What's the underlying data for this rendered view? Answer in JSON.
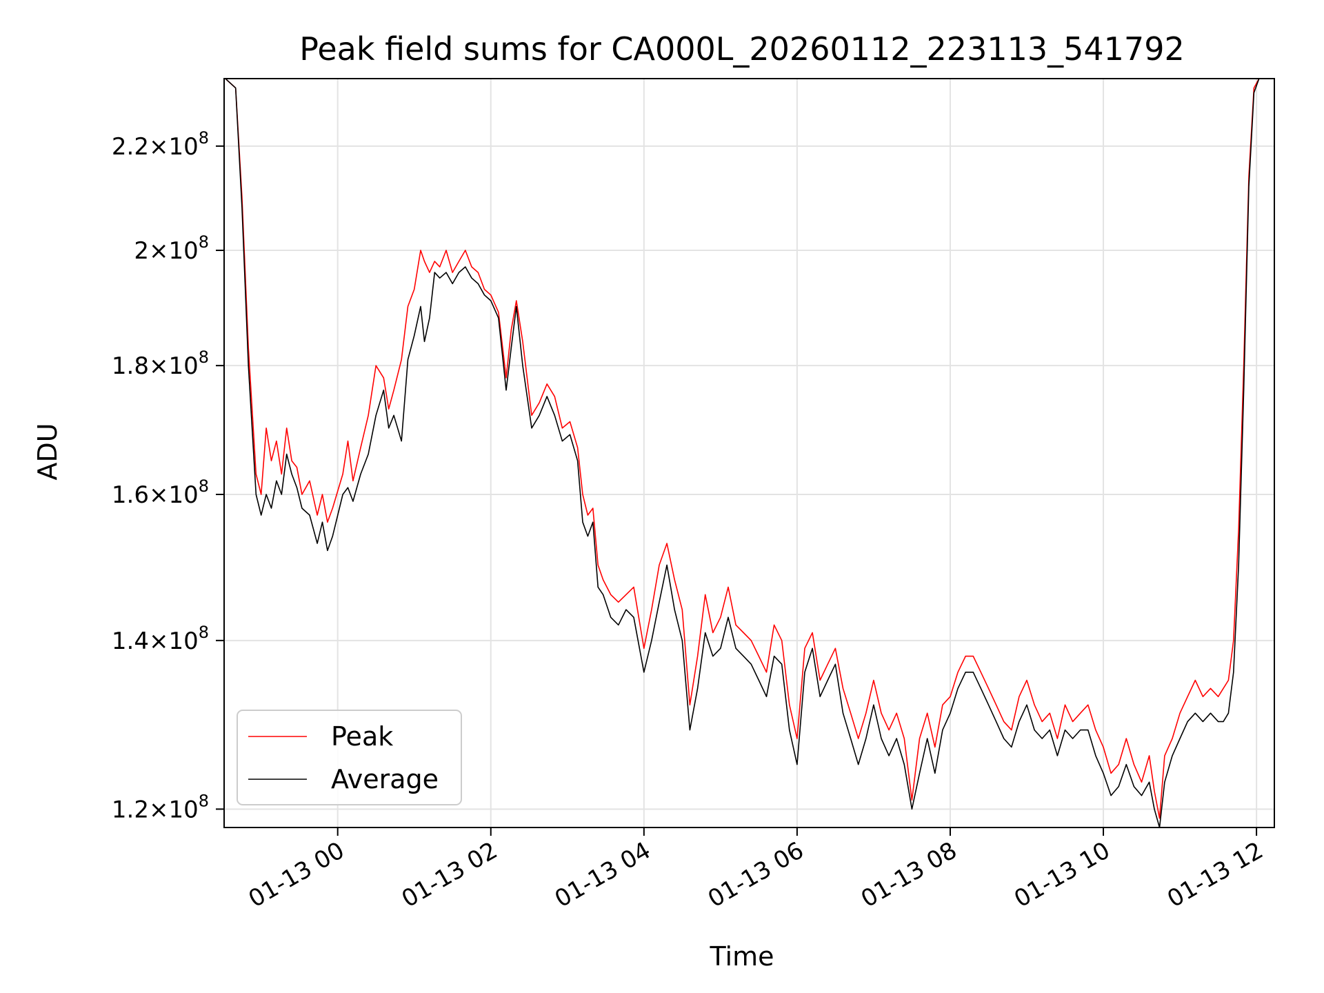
{
  "chart_data": {
    "type": "line",
    "title": "Peak field sums for CA000L_20260112_223113_541792",
    "xlabel": "Time",
    "ylabel": "ADU",
    "yscale": "log",
    "grid": true,
    "legend_position": "lower-left",
    "xlim": [
      "2026-01-12T22:31",
      "2026-01-13T12:14"
    ],
    "ylim": [
      118000000,
      234000000
    ],
    "x_ticks": [
      {
        "value": "2026-01-13T00:00",
        "label": "01-13 00"
      },
      {
        "value": "2026-01-13T02:00",
        "label": "01-13 02"
      },
      {
        "value": "2026-01-13T04:00",
        "label": "01-13 04"
      },
      {
        "value": "2026-01-13T06:00",
        "label": "01-13 06"
      },
      {
        "value": "2026-01-13T08:00",
        "label": "01-13 08"
      },
      {
        "value": "2026-01-13T10:00",
        "label": "01-13 10"
      },
      {
        "value": "2026-01-13T12:00",
        "label": "01-13 12"
      }
    ],
    "y_ticks": [
      {
        "value": 120000000,
        "mantissa": "1.2",
        "exponent": "8"
      },
      {
        "value": 140000000,
        "mantissa": "1.4",
        "exponent": "8"
      },
      {
        "value": 160000000,
        "mantissa": "1.6",
        "exponent": "8"
      },
      {
        "value": 180000000,
        "mantissa": "1.8",
        "exponent": "8"
      },
      {
        "value": 200000000,
        "mantissa": "2",
        "exponent": "8"
      },
      {
        "value": 220000000,
        "mantissa": "2.2",
        "exponent": "8"
      }
    ],
    "series": [
      {
        "name": "Peak",
        "color": "#ff0000",
        "x": [
          "2026-01-12T22:32",
          "2026-01-12T22:40",
          "2026-01-12T22:45",
          "2026-01-12T22:50",
          "2026-01-12T22:56",
          "2026-01-12T23:00",
          "2026-01-12T23:04",
          "2026-01-12T23:08",
          "2026-01-12T23:12",
          "2026-01-12T23:16",
          "2026-01-12T23:20",
          "2026-01-12T23:24",
          "2026-01-12T23:28",
          "2026-01-12T23:32",
          "2026-01-12T23:38",
          "2026-01-12T23:44",
          "2026-01-12T23:48",
          "2026-01-12T23:52",
          "2026-01-12T23:56",
          "2026-01-13T00:04",
          "2026-01-13T00:08",
          "2026-01-13T00:12",
          "2026-01-13T00:18",
          "2026-01-13T00:24",
          "2026-01-13T00:30",
          "2026-01-13T00:36",
          "2026-01-13T00:40",
          "2026-01-13T00:44",
          "2026-01-13T00:50",
          "2026-01-13T00:55",
          "2026-01-13T01:00",
          "2026-01-13T01:05",
          "2026-01-13T01:08",
          "2026-01-13T01:12",
          "2026-01-13T01:16",
          "2026-01-13T01:20",
          "2026-01-13T01:25",
          "2026-01-13T01:30",
          "2026-01-13T01:35",
          "2026-01-13T01:40",
          "2026-01-13T01:45",
          "2026-01-13T01:50",
          "2026-01-13T01:55",
          "2026-01-13T02:00",
          "2026-01-13T02:06",
          "2026-01-13T02:12",
          "2026-01-13T02:16",
          "2026-01-13T02:20",
          "2026-01-13T02:25",
          "2026-01-13T02:32",
          "2026-01-13T02:38",
          "2026-01-13T02:44",
          "2026-01-13T02:50",
          "2026-01-13T02:56",
          "2026-01-13T03:02",
          "2026-01-13T03:08",
          "2026-01-13T03:12",
          "2026-01-13T03:16",
          "2026-01-13T03:20",
          "2026-01-13T03:24",
          "2026-01-13T03:28",
          "2026-01-13T03:34",
          "2026-01-13T03:40",
          "2026-01-13T03:46",
          "2026-01-13T03:52",
          "2026-01-13T04:00",
          "2026-01-13T04:06",
          "2026-01-13T04:12",
          "2026-01-13T04:18",
          "2026-01-13T04:24",
          "2026-01-13T04:30",
          "2026-01-13T04:36",
          "2026-01-13T04:42",
          "2026-01-13T04:48",
          "2026-01-13T04:54",
          "2026-01-13T05:00",
          "2026-01-13T05:06",
          "2026-01-13T05:12",
          "2026-01-13T05:18",
          "2026-01-13T05:24",
          "2026-01-13T05:30",
          "2026-01-13T05:36",
          "2026-01-13T05:42",
          "2026-01-13T05:48",
          "2026-01-13T05:54",
          "2026-01-13T06:00",
          "2026-01-13T06:06",
          "2026-01-13T06:12",
          "2026-01-13T06:18",
          "2026-01-13T06:24",
          "2026-01-13T06:30",
          "2026-01-13T06:36",
          "2026-01-13T06:42",
          "2026-01-13T06:48",
          "2026-01-13T06:54",
          "2026-01-13T07:00",
          "2026-01-13T07:06",
          "2026-01-13T07:12",
          "2026-01-13T07:18",
          "2026-01-13T07:24",
          "2026-01-13T07:30",
          "2026-01-13T07:36",
          "2026-01-13T07:42",
          "2026-01-13T07:48",
          "2026-01-13T07:54",
          "2026-01-13T08:00",
          "2026-01-13T08:06",
          "2026-01-13T08:12",
          "2026-01-13T08:18",
          "2026-01-13T08:24",
          "2026-01-13T08:30",
          "2026-01-13T08:36",
          "2026-01-13T08:42",
          "2026-01-13T08:48",
          "2026-01-13T08:54",
          "2026-01-13T09:00",
          "2026-01-13T09:06",
          "2026-01-13T09:12",
          "2026-01-13T09:18",
          "2026-01-13T09:24",
          "2026-01-13T09:30",
          "2026-01-13T09:36",
          "2026-01-13T09:42",
          "2026-01-13T09:48",
          "2026-01-13T09:54",
          "2026-01-13T10:00",
          "2026-01-13T10:06",
          "2026-01-13T10:12",
          "2026-01-13T10:18",
          "2026-01-13T10:24",
          "2026-01-13T10:30",
          "2026-01-13T10:36",
          "2026-01-13T10:40",
          "2026-01-13T10:44",
          "2026-01-13T10:48",
          "2026-01-13T10:54",
          "2026-01-13T11:00",
          "2026-01-13T11:06",
          "2026-01-13T11:12",
          "2026-01-13T11:18",
          "2026-01-13T11:24",
          "2026-01-13T11:30",
          "2026-01-13T11:34",
          "2026-01-13T11:38",
          "2026-01-13T11:42",
          "2026-01-13T11:46",
          "2026-01-13T11:50",
          "2026-01-13T11:54",
          "2026-01-13T11:58",
          "2026-01-13T12:02"
        ],
        "values": [
          234000000,
          232000000,
          210000000,
          183000000,
          163000000,
          160000000,
          170000000,
          165000000,
          168000000,
          163000000,
          170000000,
          165000000,
          164000000,
          160000000,
          162000000,
          157000000,
          160000000,
          156000000,
          158000000,
          163000000,
          168000000,
          162000000,
          167000000,
          172000000,
          180000000,
          178000000,
          173000000,
          176000000,
          181000000,
          190000000,
          193000000,
          200000000,
          198000000,
          196000000,
          198000000,
          197000000,
          200000000,
          196000000,
          198000000,
          200000000,
          197000000,
          196000000,
          193000000,
          192000000,
          189000000,
          178000000,
          186000000,
          191000000,
          184000000,
          172000000,
          174000000,
          177000000,
          175000000,
          170000000,
          171000000,
          167000000,
          160000000,
          157000000,
          158000000,
          150000000,
          148000000,
          146000000,
          145000000,
          146000000,
          147000000,
          139000000,
          144000000,
          150000000,
          153000000,
          148000000,
          144000000,
          132000000,
          138000000,
          146000000,
          141000000,
          143000000,
          147000000,
          142000000,
          141000000,
          140000000,
          138000000,
          136000000,
          142000000,
          140000000,
          132000000,
          128000000,
          139000000,
          141000000,
          135000000,
          137000000,
          139000000,
          134000000,
          131000000,
          128000000,
          131000000,
          135000000,
          131000000,
          129000000,
          131000000,
          128000000,
          121000000,
          128000000,
          131000000,
          127000000,
          132000000,
          133000000,
          136000000,
          138000000,
          138000000,
          136000000,
          134000000,
          132000000,
          130000000,
          129000000,
          133000000,
          135000000,
          132000000,
          130000000,
          131000000,
          128000000,
          132000000,
          130000000,
          131000000,
          132000000,
          129000000,
          127000000,
          124000000,
          125000000,
          128000000,
          125000000,
          123000000,
          126000000,
          122000000,
          119000000,
          126000000,
          128000000,
          131000000,
          133000000,
          135000000,
          133000000,
          134000000,
          133000000,
          134000000,
          135000000,
          140000000,
          155000000,
          180000000,
          214000000,
          232000000,
          234000000
        ]
      },
      {
        "name": "Average",
        "color": "#000000",
        "x": [
          "2026-01-12T22:32",
          "2026-01-12T22:40",
          "2026-01-12T22:45",
          "2026-01-12T22:50",
          "2026-01-12T22:56",
          "2026-01-12T23:00",
          "2026-01-12T23:04",
          "2026-01-12T23:08",
          "2026-01-12T23:12",
          "2026-01-12T23:16",
          "2026-01-12T23:20",
          "2026-01-12T23:24",
          "2026-01-12T23:28",
          "2026-01-12T23:32",
          "2026-01-12T23:38",
          "2026-01-12T23:44",
          "2026-01-12T23:48",
          "2026-01-12T23:52",
          "2026-01-12T23:56",
          "2026-01-13T00:04",
          "2026-01-13T00:08",
          "2026-01-13T00:12",
          "2026-01-13T00:18",
          "2026-01-13T00:24",
          "2026-01-13T00:30",
          "2026-01-13T00:36",
          "2026-01-13T00:40",
          "2026-01-13T00:44",
          "2026-01-13T00:50",
          "2026-01-13T00:55",
          "2026-01-13T01:00",
          "2026-01-13T01:05",
          "2026-01-13T01:08",
          "2026-01-13T01:12",
          "2026-01-13T01:16",
          "2026-01-13T01:20",
          "2026-01-13T01:25",
          "2026-01-13T01:30",
          "2026-01-13T01:35",
          "2026-01-13T01:40",
          "2026-01-13T01:45",
          "2026-01-13T01:50",
          "2026-01-13T01:55",
          "2026-01-13T02:00",
          "2026-01-13T02:06",
          "2026-01-13T02:12",
          "2026-01-13T02:16",
          "2026-01-13T02:20",
          "2026-01-13T02:25",
          "2026-01-13T02:32",
          "2026-01-13T02:38",
          "2026-01-13T02:44",
          "2026-01-13T02:50",
          "2026-01-13T02:56",
          "2026-01-13T03:02",
          "2026-01-13T03:08",
          "2026-01-13T03:12",
          "2026-01-13T03:16",
          "2026-01-13T03:20",
          "2026-01-13T03:24",
          "2026-01-13T03:28",
          "2026-01-13T03:34",
          "2026-01-13T03:40",
          "2026-01-13T03:46",
          "2026-01-13T03:52",
          "2026-01-13T04:00",
          "2026-01-13T04:06",
          "2026-01-13T04:12",
          "2026-01-13T04:18",
          "2026-01-13T04:24",
          "2026-01-13T04:30",
          "2026-01-13T04:36",
          "2026-01-13T04:42",
          "2026-01-13T04:48",
          "2026-01-13T04:54",
          "2026-01-13T05:00",
          "2026-01-13T05:06",
          "2026-01-13T05:12",
          "2026-01-13T05:18",
          "2026-01-13T05:24",
          "2026-01-13T05:30",
          "2026-01-13T05:36",
          "2026-01-13T05:42",
          "2026-01-13T05:48",
          "2026-01-13T05:54",
          "2026-01-13T06:00",
          "2026-01-13T06:06",
          "2026-01-13T06:12",
          "2026-01-13T06:18",
          "2026-01-13T06:24",
          "2026-01-13T06:30",
          "2026-01-13T06:36",
          "2026-01-13T06:42",
          "2026-01-13T06:48",
          "2026-01-13T06:54",
          "2026-01-13T07:00",
          "2026-01-13T07:06",
          "2026-01-13T07:12",
          "2026-01-13T07:18",
          "2026-01-13T07:24",
          "2026-01-13T07:30",
          "2026-01-13T07:36",
          "2026-01-13T07:42",
          "2026-01-13T07:48",
          "2026-01-13T07:54",
          "2026-01-13T08:00",
          "2026-01-13T08:06",
          "2026-01-13T08:12",
          "2026-01-13T08:18",
          "2026-01-13T08:24",
          "2026-01-13T08:30",
          "2026-01-13T08:36",
          "2026-01-13T08:42",
          "2026-01-13T08:48",
          "2026-01-13T08:54",
          "2026-01-13T09:00",
          "2026-01-13T09:06",
          "2026-01-13T09:12",
          "2026-01-13T09:18",
          "2026-01-13T09:24",
          "2026-01-13T09:30",
          "2026-01-13T09:36",
          "2026-01-13T09:42",
          "2026-01-13T09:48",
          "2026-01-13T09:54",
          "2026-01-13T10:00",
          "2026-01-13T10:06",
          "2026-01-13T10:12",
          "2026-01-13T10:18",
          "2026-01-13T10:24",
          "2026-01-13T10:30",
          "2026-01-13T10:36",
          "2026-01-13T10:40",
          "2026-01-13T10:44",
          "2026-01-13T10:48",
          "2026-01-13T10:54",
          "2026-01-13T11:00",
          "2026-01-13T11:06",
          "2026-01-13T11:12",
          "2026-01-13T11:18",
          "2026-01-13T11:24",
          "2026-01-13T11:30",
          "2026-01-13T11:34",
          "2026-01-13T11:38",
          "2026-01-13T11:42",
          "2026-01-13T11:46",
          "2026-01-13T11:50",
          "2026-01-13T11:54",
          "2026-01-13T11:58",
          "2026-01-13T12:02"
        ],
        "values": [
          234000000,
          232000000,
          208000000,
          180000000,
          160000000,
          157000000,
          160000000,
          158000000,
          162000000,
          160000000,
          166000000,
          163000000,
          161000000,
          158000000,
          157000000,
          153000000,
          156000000,
          152000000,
          154000000,
          160000000,
          161000000,
          159000000,
          163000000,
          166000000,
          172000000,
          176000000,
          170000000,
          172000000,
          168000000,
          181000000,
          185000000,
          190000000,
          184000000,
          188000000,
          196000000,
          195000000,
          196000000,
          194000000,
          196000000,
          197000000,
          195000000,
          194000000,
          192000000,
          191000000,
          188000000,
          176000000,
          183000000,
          190000000,
          180000000,
          170000000,
          172000000,
          175000000,
          172000000,
          168000000,
          169000000,
          165000000,
          156000000,
          154000000,
          156000000,
          147000000,
          146000000,
          143000000,
          142000000,
          144000000,
          143000000,
          136000000,
          140000000,
          145000000,
          150000000,
          144000000,
          140000000,
          129000000,
          134000000,
          141000000,
          138000000,
          139000000,
          143000000,
          139000000,
          138000000,
          137000000,
          135000000,
          133000000,
          138000000,
          137000000,
          129000000,
          125000000,
          136000000,
          139000000,
          133000000,
          135000000,
          137000000,
          131000000,
          128000000,
          125000000,
          128000000,
          132000000,
          128000000,
          126000000,
          128000000,
          125000000,
          120000000,
          124000000,
          128000000,
          124000000,
          129000000,
          131000000,
          134000000,
          136000000,
          136000000,
          134000000,
          132000000,
          130000000,
          128000000,
          127000000,
          130000000,
          132000000,
          129000000,
          128000000,
          129000000,
          126000000,
          129000000,
          128000000,
          129000000,
          129000000,
          126000000,
          124000000,
          121500000,
          122500000,
          125000000,
          122500000,
          121500000,
          123000000,
          120000000,
          118000000,
          123000000,
          126000000,
          128000000,
          130000000,
          131000000,
          130000000,
          131000000,
          130000000,
          130000000,
          131000000,
          136000000,
          150000000,
          176000000,
          212000000,
          231000000,
          234000000
        ]
      }
    ]
  }
}
